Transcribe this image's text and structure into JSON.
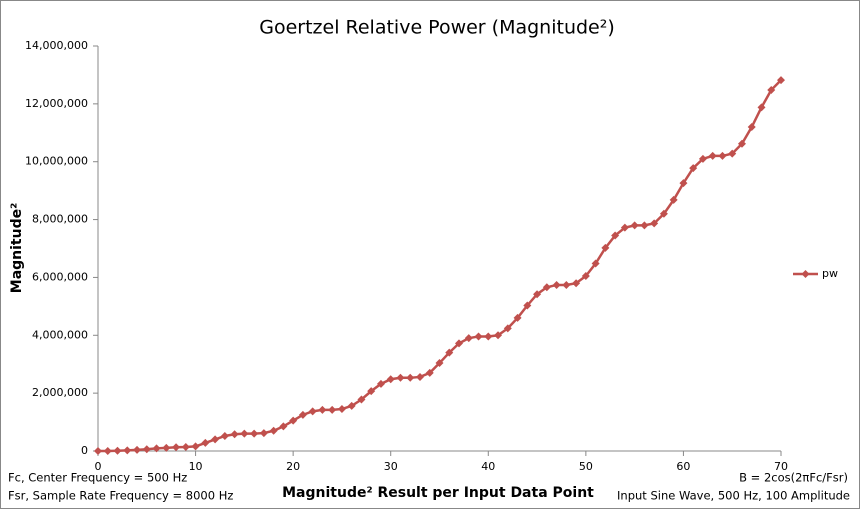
{
  "chart_data": {
    "type": "line",
    "title": "Goertzel Relative Power (Magnitude²)",
    "x_label": "Magnitude² Result per Input Data Point",
    "y_label": "Magnitude²",
    "annotations": [
      "Fc, Center Frequency = 500 Hz",
      "Fsr, Sample Rate Frequency = 8000  Hz",
      "B = 2cos(2πFc/Fsr)",
      "Input Sine Wave, 500 Hz, 100  Amplitude"
    ],
    "x": [
      0,
      1,
      2,
      3,
      4,
      5,
      6,
      7,
      8,
      9,
      10,
      11,
      12,
      13,
      14,
      15,
      16,
      17,
      18,
      19,
      20,
      21,
      22,
      23,
      24,
      25,
      26,
      27,
      28,
      29,
      30,
      31,
      32,
      33,
      34,
      35,
      36,
      37,
      38,
      39,
      40,
      41,
      42,
      43,
      44,
      45,
      46,
      47,
      48,
      49,
      50,
      51,
      52,
      53,
      54,
      55,
      56,
      57,
      58,
      59,
      60,
      61,
      62,
      63,
      64,
      65,
      66,
      67,
      68,
      69,
      70
    ],
    "series": [
      {
        "name": "pw",
        "color": "#c0504d",
        "values": [
          0,
          0,
          10000,
          20000,
          40000,
          60000,
          90000,
          110000,
          130000,
          140000,
          160000,
          280000,
          400000,
          520000,
          580000,
          600000,
          600000,
          620000,
          700000,
          850000,
          1050000,
          1250000,
          1370000,
          1420000,
          1420000,
          1450000,
          1560000,
          1780000,
          2070000,
          2320000,
          2480000,
          2530000,
          2530000,
          2560000,
          2700000,
          3040000,
          3400000,
          3720000,
          3900000,
          3960000,
          3960000,
          4000000,
          4240000,
          4600000,
          5030000,
          5420000,
          5660000,
          5740000,
          5740000,
          5800000,
          6050000,
          6480000,
          7020000,
          7450000,
          7720000,
          7800000,
          7800000,
          7870000,
          8200000,
          8680000,
          9260000,
          9780000,
          10100000,
          10200000,
          10200000,
          10280000,
          10620000,
          11200000,
          11880000,
          12480000,
          12820000
        ]
      }
    ],
    "xlim": [
      0,
      70
    ],
    "xticks": [
      0,
      10,
      20,
      30,
      40,
      50,
      60,
      70
    ],
    "ylim": [
      0,
      14000000
    ],
    "yticks": [
      0,
      {
        "value": 2000000,
        "label": "2,000,000"
      },
      {
        "value": 4000000,
        "label": "4,000,000"
      },
      {
        "value": 6000000,
        "label": "6,000,000"
      },
      {
        "value": 8000000,
        "label": "8,000,000"
      },
      {
        "value": 10000000,
        "label": "10,000,000"
      },
      {
        "value": 12000000,
        "label": "12,000,000"
      },
      {
        "value": 14000000,
        "label": "14,000,000"
      }
    ],
    "grid": false,
    "legend": "right"
  }
}
